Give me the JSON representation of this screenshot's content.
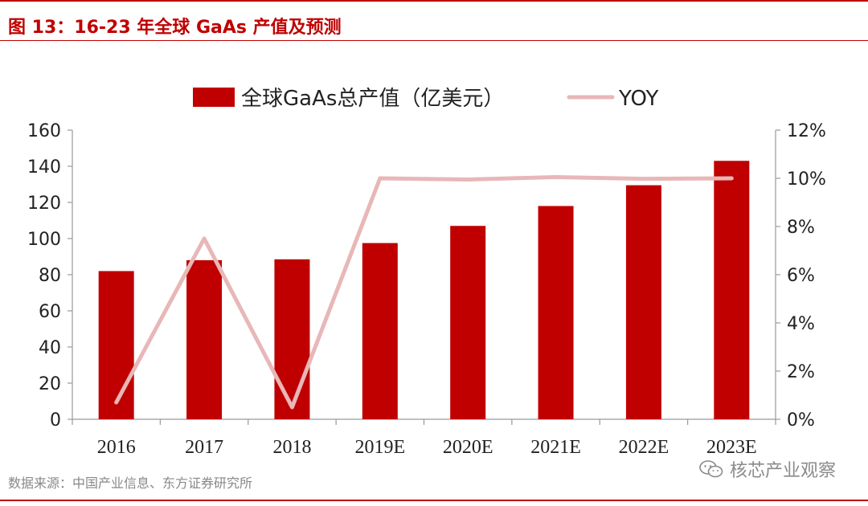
{
  "figure": {
    "title": "图 13：16-23 年全球 GaAs 产值及预测",
    "source": "数据来源：中国产业信息、东方证券研究所",
    "watermark": "核芯产业观察",
    "watermark_icon": "wechat-icon"
  },
  "colors": {
    "accent": "#c00000",
    "bar": "#c00000",
    "line": "#e8b7b7",
    "axis": "#999999",
    "text": "#222222",
    "source_text": "#888888"
  },
  "chart_data": {
    "type": "bar",
    "categories": [
      "2016",
      "2017",
      "2018",
      "2019E",
      "2020E",
      "2021E",
      "2022E",
      "2023E"
    ],
    "series": [
      {
        "name": "全球GaAs总产值（亿美元）",
        "type": "bar",
        "axis": "left",
        "values": [
          82,
          88,
          88.5,
          97.5,
          107,
          118,
          129.5,
          143
        ]
      },
      {
        "name": "YOY",
        "type": "line",
        "axis": "right",
        "values": [
          0.7,
          7.5,
          0.5,
          10.0,
          9.95,
          10.05,
          9.98,
          10.0
        ]
      }
    ],
    "y_left": {
      "min": 0,
      "max": 160,
      "step": 20,
      "ticks": [
        "0",
        "20",
        "40",
        "60",
        "80",
        "100",
        "120",
        "140",
        "160"
      ]
    },
    "y_right": {
      "min": 0,
      "max": 12,
      "step": 2,
      "ticks": [
        "0%",
        "2%",
        "4%",
        "6%",
        "8%",
        "10%",
        "12%"
      ]
    },
    "grid": false,
    "legend_position": "top-center"
  }
}
